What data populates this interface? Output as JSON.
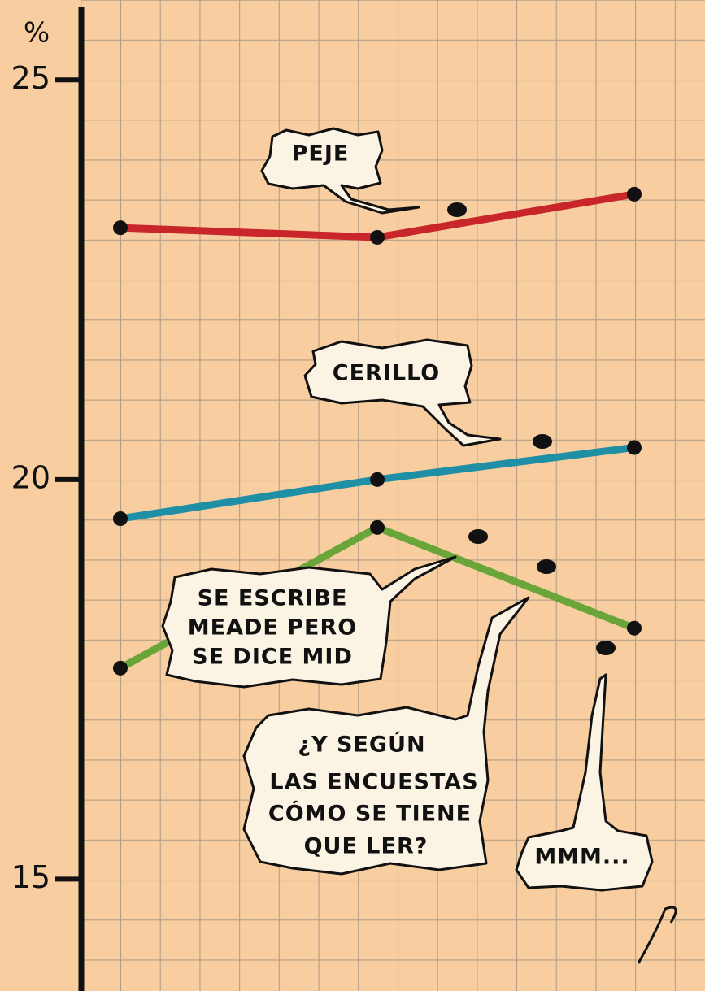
{
  "chart_data": {
    "type": "line",
    "y_label": "%",
    "categories": [
      null,
      null,
      null
    ],
    "series": [
      {
        "color": "#c8262b",
        "values": [
          23.15,
          23.03,
          23.57
        ]
      },
      {
        "color": "#1f8fa6",
        "values": [
          19.51,
          20.0,
          20.4
        ]
      },
      {
        "color": "#6aa53a",
        "values": [
          17.64,
          19.4,
          18.14
        ]
      }
    ],
    "ylim": [
      13.6,
      26.0
    ],
    "yticks": [
      15,
      20,
      25
    ],
    "grid": true,
    "annotations": [
      {
        "lines": [
          "PEJE"
        ]
      },
      {
        "lines": [
          "CERILLO"
        ]
      },
      {
        "lines": [
          "SE ESCRIBE",
          "MEADE PERO",
          "SE DICE MID"
        ]
      },
      {
        "lines": [
          "¿Y SEGÚN",
          "LAS ENCUESTAS",
          "CÓMO SE TIENE",
          "QUE LER?"
        ]
      },
      {
        "lines": [
          "MMM..."
        ]
      }
    ]
  }
}
